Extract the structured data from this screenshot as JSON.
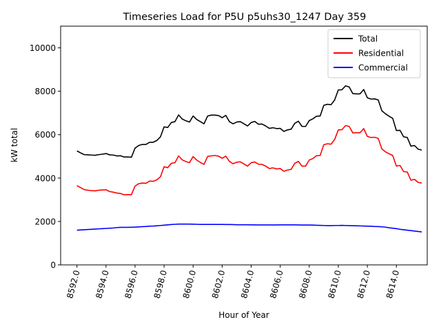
{
  "chart_data": {
    "type": "line",
    "title": "Timeseries Load for P5U p5uhs30_1247  Day 359",
    "xlabel": "Hour of Year",
    "ylabel": "kW total",
    "xlim": [
      8590.875,
      8616.125
    ],
    "ylim": [
      0,
      11000
    ],
    "x_start": 8592.0,
    "x_step": 0.25,
    "xticks": [
      8592.0,
      8594.0,
      8596.0,
      8598.0,
      8600.0,
      8602.0,
      8604.0,
      8606.0,
      8608.0,
      8610.0,
      8612.0,
      8614.0
    ],
    "xtick_labels": [
      "8592.0",
      "8594.0",
      "8596.0",
      "8598.0",
      "8600.0",
      "8602.0",
      "8604.0",
      "8606.0",
      "8608.0",
      "8610.0",
      "8612.0",
      "8614.0"
    ],
    "yticks": [
      0,
      2000,
      4000,
      6000,
      8000,
      10000
    ],
    "ytick_labels": [
      "0",
      "2000",
      "4000",
      "6000",
      "8000",
      "10000"
    ],
    "grid": false,
    "legend_position": "top-right",
    "series": [
      {
        "name": "Total",
        "color": "#000000",
        "values": [
          5250,
          5160,
          5080,
          5070,
          5060,
          5050,
          5080,
          5100,
          5130,
          5070,
          5060,
          5020,
          5030,
          4970,
          4970,
          4960,
          5380,
          5500,
          5550,
          5550,
          5650,
          5650,
          5730,
          5900,
          6360,
          6330,
          6560,
          6600,
          6910,
          6720,
          6640,
          6580,
          6860,
          6700,
          6600,
          6500,
          6860,
          6900,
          6900,
          6880,
          6780,
          6890,
          6600,
          6500,
          6580,
          6600,
          6500,
          6400,
          6560,
          6610,
          6480,
          6490,
          6400,
          6290,
          6320,
          6280,
          6290,
          6150,
          6220,
          6250,
          6520,
          6620,
          6380,
          6380,
          6650,
          6730,
          6850,
          6860,
          7350,
          7400,
          7380,
          7600,
          8060,
          8070,
          8250,
          8200,
          7890,
          7880,
          7880,
          8080,
          7700,
          7640,
          7650,
          7600,
          7100,
          6960,
          6850,
          6750,
          6190,
          6200,
          5900,
          5870,
          5470,
          5500,
          5330,
          5290
        ]
      },
      {
        "name": "Residential",
        "color": "#ff0000",
        "values": [
          3650,
          3560,
          3470,
          3440,
          3420,
          3410,
          3440,
          3450,
          3460,
          3380,
          3350,
          3310,
          3290,
          3230,
          3240,
          3230,
          3630,
          3740,
          3770,
          3760,
          3860,
          3850,
          3920,
          4060,
          4520,
          4480,
          4680,
          4710,
          5020,
          4840,
          4760,
          4710,
          4990,
          4830,
          4720,
          4630,
          5000,
          5020,
          5040,
          5010,
          4910,
          5010,
          4770,
          4660,
          4730,
          4750,
          4650,
          4550,
          4710,
          4740,
          4640,
          4630,
          4550,
          4440,
          4470,
          4420,
          4440,
          4310,
          4370,
          4400,
          4680,
          4770,
          4550,
          4550,
          4830,
          4900,
          5030,
          5040,
          5540,
          5580,
          5560,
          5780,
          6220,
          6230,
          6420,
          6380,
          6080,
          6090,
          6090,
          6280,
          5920,
          5870,
          5880,
          5830,
          5340,
          5210,
          5120,
          5040,
          4550,
          4580,
          4300,
          4280,
          3900,
          3940,
          3800,
          3770
        ]
      },
      {
        "name": "Commercial",
        "color": "#0000ff",
        "values": [
          1600,
          1610,
          1620,
          1630,
          1640,
          1650,
          1660,
          1670,
          1680,
          1690,
          1700,
          1720,
          1730,
          1730,
          1730,
          1735,
          1740,
          1750,
          1760,
          1770,
          1785,
          1790,
          1800,
          1815,
          1830,
          1845,
          1860,
          1870,
          1880,
          1880,
          1880,
          1880,
          1875,
          1870,
          1865,
          1865,
          1865,
          1865,
          1865,
          1865,
          1865,
          1860,
          1860,
          1855,
          1850,
          1850,
          1850,
          1848,
          1845,
          1845,
          1842,
          1840,
          1840,
          1840,
          1840,
          1842,
          1844,
          1845,
          1845,
          1845,
          1845,
          1840,
          1835,
          1835,
          1835,
          1832,
          1825,
          1820,
          1815,
          1810,
          1810,
          1815,
          1815,
          1820,
          1815,
          1810,
          1805,
          1800,
          1795,
          1790,
          1785,
          1780,
          1770,
          1765,
          1755,
          1740,
          1710,
          1690,
          1670,
          1640,
          1620,
          1600,
          1580,
          1560,
          1540,
          1520
        ]
      }
    ]
  }
}
